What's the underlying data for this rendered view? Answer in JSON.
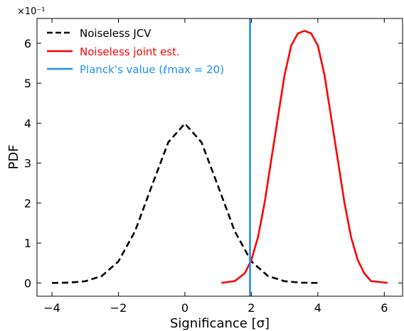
{
  "chart_data": {
    "type": "line",
    "xlabel": "Significance [σ]",
    "ylabel": "PDF",
    "y_multiplier": "×10⁻¹",
    "xlim": [
      -4.45,
      6.55
    ],
    "ylim": [
      -0.33,
      6.62
    ],
    "xticks": [
      -4,
      -2,
      0,
      2,
      4,
      6
    ],
    "xtick_labels": [
      "−4",
      "−2",
      "0",
      "2",
      "4",
      "6"
    ],
    "yticks": [
      0,
      1,
      2,
      3,
      4,
      5,
      6
    ],
    "ytick_labels": [
      "0",
      "1",
      "2",
      "3",
      "4",
      "5",
      "6"
    ],
    "grid": false,
    "legend_position": "top-left",
    "series": [
      {
        "name": "Noiseless JCV",
        "color": "#000000",
        "style": "dashed",
        "x": [
          -4.0,
          -3.5,
          -3.0,
          -2.5,
          -2.0,
          -1.5,
          -1.0,
          -0.5,
          0.0,
          0.5,
          1.0,
          1.5,
          2.0,
          2.5,
          3.0,
          3.5,
          4.0
        ],
        "y": [
          0.001,
          0.009,
          0.044,
          0.175,
          0.54,
          1.295,
          2.42,
          3.521,
          3.989,
          3.521,
          2.42,
          1.295,
          0.54,
          0.175,
          0.044,
          0.009,
          0.001
        ]
      },
      {
        "name": "Noiseless joint est.",
        "color": "#ff0000",
        "style": "solid",
        "x": [
          1.1,
          1.5,
          1.8,
          2.0,
          2.2,
          2.4,
          2.6,
          2.8,
          3.0,
          3.2,
          3.4,
          3.6,
          3.8,
          4.0,
          4.2,
          4.4,
          4.6,
          4.8,
          5.0,
          5.2,
          5.4,
          5.6,
          6.1
        ],
        "y": [
          0.003,
          0.048,
          0.241,
          0.575,
          1.15,
          2.015,
          3.089,
          4.148,
          5.208,
          5.943,
          6.247,
          6.31,
          6.247,
          5.943,
          5.208,
          4.148,
          3.089,
          2.015,
          1.15,
          0.575,
          0.241,
          0.048,
          0.003
        ]
      },
      {
        "name": "Planck's value (ℓmax = 20)",
        "color": "#1f8fef",
        "style": "vertical",
        "x_value": 1.96
      }
    ]
  }
}
